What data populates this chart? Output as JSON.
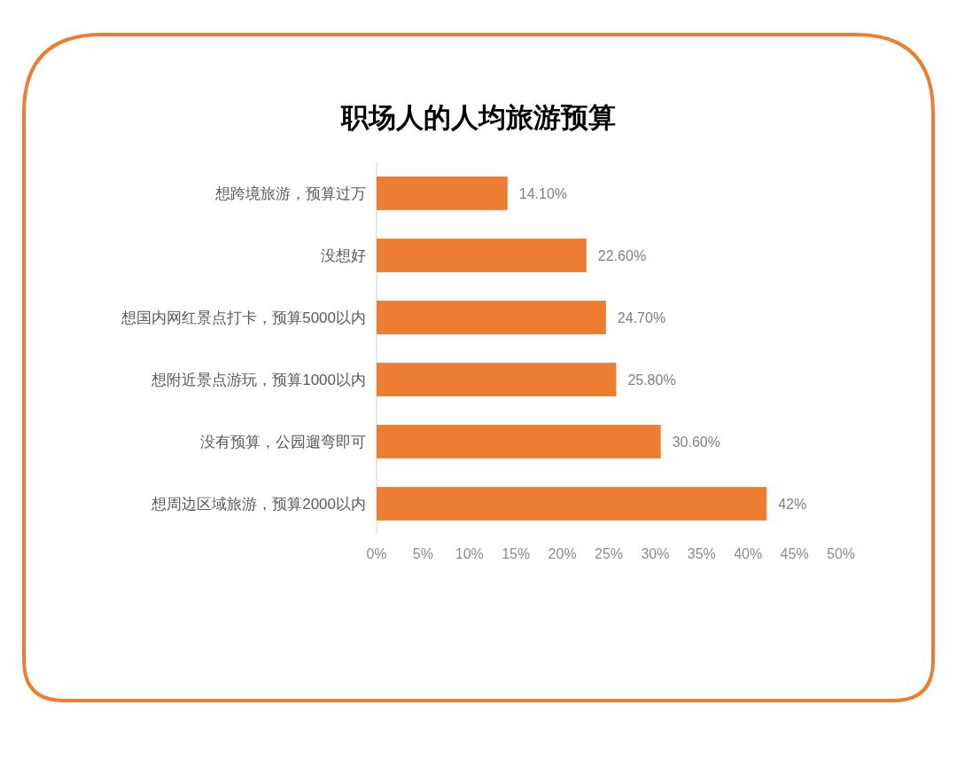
{
  "chart_data": {
    "type": "bar",
    "orientation": "horizontal",
    "title": "职场人的人均旅游预算",
    "categories": [
      "想跨境旅游，预算过万",
      "没想好",
      "想国内网红景点打卡，预算5000以内",
      "想附近景点游玩，预算1000以内",
      "没有预算，公园遛弯即可",
      "想周边区域旅游，预算2000以内"
    ],
    "values": [
      14.1,
      22.6,
      24.7,
      25.8,
      30.6,
      42
    ],
    "value_labels": [
      "14.10%",
      "22.60%",
      "24.70%",
      "25.80%",
      "30.60%",
      "42%"
    ],
    "color": "#ed7d31",
    "xlim": [
      0,
      50
    ],
    "xticks": [
      {
        "value": 0,
        "label": "0%"
      },
      {
        "value": 5,
        "label": "5%"
      },
      {
        "value": 10,
        "label": "10%"
      },
      {
        "value": 15,
        "label": "15%"
      },
      {
        "value": 20,
        "label": "20%"
      },
      {
        "value": 25,
        "label": "25%"
      },
      {
        "value": 30,
        "label": "30%"
      },
      {
        "value": 35,
        "label": "35%"
      },
      {
        "value": 40,
        "label": "40%"
      },
      {
        "value": 45,
        "label": "45%"
      },
      {
        "value": 50,
        "label": "50%"
      }
    ]
  }
}
